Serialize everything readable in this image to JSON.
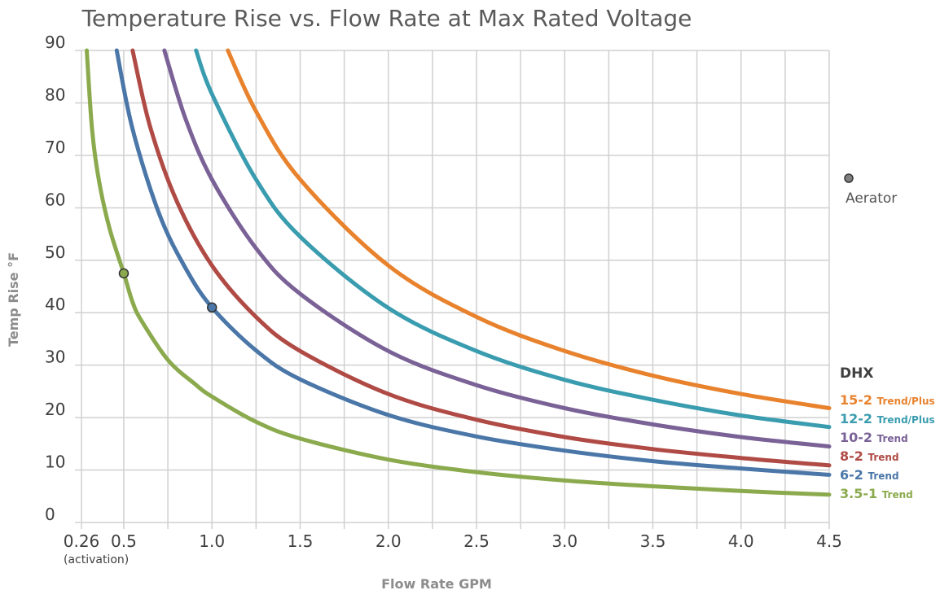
{
  "chart_data": {
    "type": "line",
    "title": "Temperature Rise vs. Flow Rate at Max Rated Voltage",
    "xlabel": "Flow Rate GPM",
    "ylabel": "Temp Rise °F",
    "xlim": [
      0.26,
      4.5
    ],
    "ylim": [
      0,
      90
    ],
    "x_ticks": [
      {
        "value": 0.26,
        "label": "0.26"
      },
      {
        "value": 0.5,
        "label": "0.5"
      },
      {
        "value": 1.0,
        "label": "1.0"
      },
      {
        "value": 1.5,
        "label": "1.5"
      },
      {
        "value": 2.0,
        "label": "2.0"
      },
      {
        "value": 2.5,
        "label": "2.5"
      },
      {
        "value": 3.0,
        "label": "3.0"
      },
      {
        "value": 3.5,
        "label": "3.5"
      },
      {
        "value": 4.0,
        "label": "4.0"
      },
      {
        "value": 4.5,
        "label": "4.5"
      }
    ],
    "x_tick_note": "(activation)",
    "y_ticks": [
      0,
      10,
      20,
      30,
      40,
      50,
      60,
      70,
      80,
      90
    ],
    "grid": true,
    "legend_title": "DHX",
    "legend_position": "right",
    "series": [
      {
        "name": "15-2",
        "suffix": "Trend/Plus",
        "color": "#E8822D",
        "points": [
          [
            1.09,
            90
          ],
          [
            1.25,
            78.4
          ],
          [
            1.5,
            65.4
          ],
          [
            2.0,
            49.0
          ],
          [
            2.5,
            39.2
          ],
          [
            3.0,
            32.7
          ],
          [
            3.5,
            28.0
          ],
          [
            4.0,
            24.5
          ],
          [
            4.5,
            21.8
          ]
        ]
      },
      {
        "name": "12-2",
        "suffix": "Trend/Plus",
        "color": "#3A9CAF",
        "points": [
          [
            0.91,
            90
          ],
          [
            1.0,
            81.7
          ],
          [
            1.25,
            65.4
          ],
          [
            1.5,
            54.5
          ],
          [
            2.0,
            40.9
          ],
          [
            2.5,
            32.7
          ],
          [
            3.0,
            27.2
          ],
          [
            3.5,
            23.4
          ],
          [
            4.0,
            20.4
          ],
          [
            4.5,
            18.2
          ]
        ]
      },
      {
        "name": "10-2",
        "suffix": "Trend",
        "color": "#7A6297",
        "points": [
          [
            0.73,
            90
          ],
          [
            0.85,
            77.0
          ],
          [
            1.0,
            65.4
          ],
          [
            1.25,
            52.3
          ],
          [
            1.5,
            43.6
          ],
          [
            2.0,
            32.7
          ],
          [
            2.5,
            26.2
          ],
          [
            3.0,
            21.8
          ],
          [
            3.5,
            18.7
          ],
          [
            4.0,
            16.3
          ],
          [
            4.5,
            14.5
          ]
        ]
      },
      {
        "name": "8-2",
        "suffix": "Trend",
        "color": "#B04A45",
        "points": [
          [
            0.55,
            90
          ],
          [
            0.65,
            75.4
          ],
          [
            0.8,
            61.3
          ],
          [
            1.0,
            49.0
          ],
          [
            1.25,
            39.2
          ],
          [
            1.5,
            32.7
          ],
          [
            2.0,
            24.5
          ],
          [
            2.5,
            19.6
          ],
          [
            3.0,
            16.3
          ],
          [
            3.5,
            14.0
          ],
          [
            4.0,
            12.3
          ],
          [
            4.5,
            10.9
          ]
        ]
      },
      {
        "name": "6-2",
        "suffix": "Trend",
        "color": "#4A76A8",
        "points": [
          [
            0.46,
            90
          ],
          [
            0.55,
            75.0
          ],
          [
            0.7,
            58.9
          ],
          [
            0.85,
            48.5
          ],
          [
            1.0,
            41.0
          ],
          [
            1.25,
            32.8
          ],
          [
            1.5,
            27.3
          ],
          [
            2.0,
            20.5
          ],
          [
            2.5,
            16.4
          ],
          [
            3.0,
            13.7
          ],
          [
            3.5,
            11.7
          ],
          [
            4.0,
            10.3
          ],
          [
            4.5,
            9.1
          ]
        ]
      },
      {
        "name": "3.5-1",
        "suffix": "Trend",
        "color": "#8BAA4D",
        "points": [
          [
            0.29,
            90
          ],
          [
            0.32,
            75.0
          ],
          [
            0.36,
            65.0
          ],
          [
            0.42,
            56.0
          ],
          [
            0.5,
            47.5
          ],
          [
            0.55,
            42.0
          ],
          [
            0.6,
            38.5
          ],
          [
            0.75,
            31.0
          ],
          [
            0.9,
            26.5
          ],
          [
            1.0,
            24.0
          ],
          [
            1.25,
            19.2
          ],
          [
            1.5,
            16.0
          ],
          [
            2.0,
            12.0
          ],
          [
            2.5,
            9.6
          ],
          [
            3.0,
            8.0
          ],
          [
            3.5,
            6.9
          ],
          [
            4.0,
            6.0
          ],
          [
            4.5,
            5.3
          ]
        ]
      }
    ],
    "markers": [
      {
        "x": 0.5,
        "y": 47.5,
        "fill": "#8BAA4D"
      },
      {
        "x": 1.0,
        "y": 41.0,
        "fill": "#4A76A8"
      }
    ],
    "aerator_label": "Aerator",
    "aerator_fill": "#808080"
  }
}
